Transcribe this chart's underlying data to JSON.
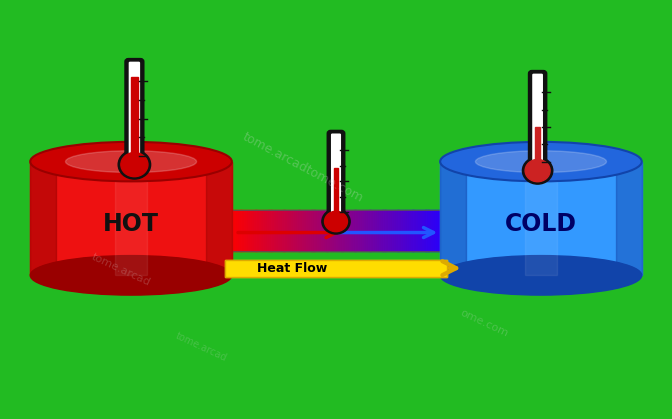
{
  "bg_color": "#22bb22",
  "hot_color": "#ee1111",
  "hot_dark": "#cc0000",
  "hot_darker": "#990000",
  "cold_color": "#3399ff",
  "cold_dark": "#2266dd",
  "cold_darker": "#1144aa",
  "hot_label": "HOT",
  "cold_label": "COLD",
  "hot_label_color": "#111111",
  "cold_label_color": "#000066",
  "heat_flow_label": "Heat Flow",
  "arrow_red_color": "#dd0000",
  "arrow_blue_color": "#2255ff",
  "arrow_yellow_color": "#ffdd00",
  "arrow_yellow_dark": "#ddaa00",
  "therm_outline": "#111111",
  "therm_fill": "#ffffff",
  "therm_mercury": "#cc0000",
  "therm_mercury_low": "#cc2222",
  "pipe_alpha": 0.9
}
